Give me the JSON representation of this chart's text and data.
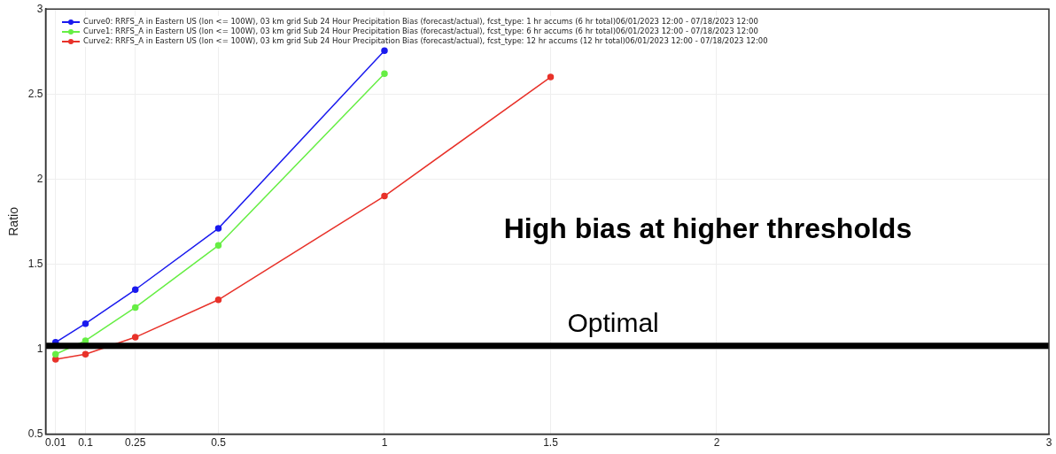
{
  "chart_data": {
    "type": "line",
    "ylabel": "Ratio",
    "xlim": [
      -0.02,
      3
    ],
    "xticks": [
      0.01,
      0.1,
      0.25,
      0.5,
      1,
      1.5,
      2,
      3
    ],
    "ylim": [
      0.5,
      3
    ],
    "yticks": [
      0.5,
      1,
      1.5,
      2,
      2.5,
      3
    ],
    "x": [
      0.01,
      0.1,
      0.25,
      0.5,
      1,
      1.5
    ],
    "series": [
      {
        "name": "Curve0: RRFS_A in Eastern US (lon <= 100W), 03 km grid Sub 24 Hour Precipitation Bias (forecast/actual), fcst_type: 1 hr accums (6 hr total)06/01/2023 12:00 - 07/18/2023 12:00",
        "color": "#1a1aee",
        "values": [
          1.04,
          1.15,
          1.35,
          1.71,
          2.755,
          null
        ]
      },
      {
        "name": "Curve1: RRFS_A in Eastern US (lon <= 100W), 03 km grid Sub 24 Hour Precipitation Bias (forecast/actual), fcst_type: 6 hr accums (6 hr total)06/01/2023 12:00 - 07/18/2023 12:00",
        "color": "#66ee44",
        "values": [
          0.97,
          1.05,
          1.245,
          1.61,
          2.62,
          null
        ]
      },
      {
        "name": "Curve2: RRFS_A in Eastern US (lon <= 100W), 03 km grid Sub 24 Hour Precipitation Bias (forecast/actual), fcst_type: 12 hr accums (12 hr total)06/01/2023 12:00 - 07/18/2023 12:00",
        "color": "#e8322a",
        "values": [
          0.94,
          0.97,
          1.07,
          1.29,
          1.9,
          2.6
        ]
      }
    ],
    "ref_lines": [
      {
        "axis": "y",
        "value": 1.02,
        "label": "Optimal",
        "color": "#000000"
      }
    ],
    "annotations": [
      "High bias at higher thresholds"
    ],
    "grid": true,
    "legend": "top left",
    "marker": "circle",
    "line_style": "solid"
  }
}
